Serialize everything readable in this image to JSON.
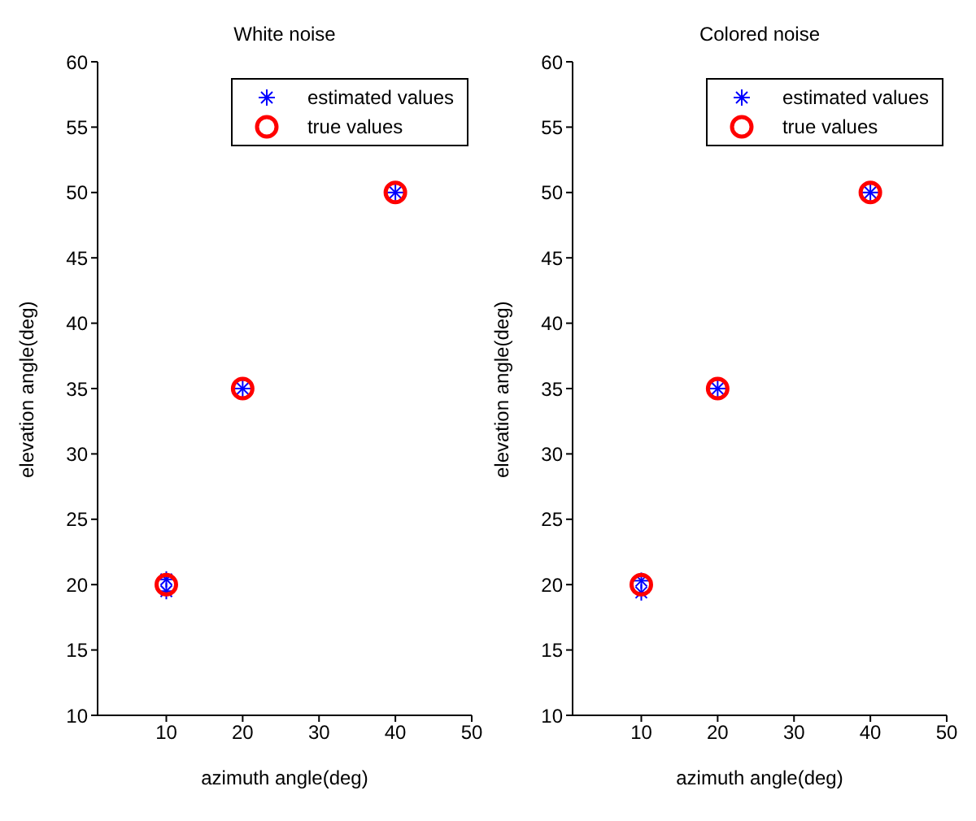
{
  "chart_data": [
    {
      "type": "scatter",
      "title": "White noise",
      "xlabel": "azimuth angle(deg)",
      "ylabel": "elevation angle(deg)",
      "xlim": [
        1,
        50
      ],
      "xticks": [
        10,
        20,
        30,
        40,
        50
      ],
      "ylim": [
        10,
        60
      ],
      "yticks": [
        10,
        15,
        20,
        25,
        30,
        35,
        40,
        45,
        50,
        55,
        60
      ],
      "grid": false,
      "legend": "top right",
      "series": [
        {
          "name": "estimated values",
          "color": "#0000ff",
          "marker": "cross",
          "x": [
            10,
            10,
            20,
            40
          ],
          "values": [
            20.4,
            19.5,
            35,
            50
          ]
        },
        {
          "name": "true values",
          "color": "#ff0000",
          "marker": "circle",
          "x": [
            10,
            20,
            40
          ],
          "values": [
            20,
            35,
            50
          ]
        }
      ]
    },
    {
      "type": "scatter",
      "title": "Colored noise",
      "xlabel": "azimuth angle(deg)",
      "ylabel": "elevation angle(deg)",
      "xlim": [
        1,
        50
      ],
      "xticks": [
        10,
        20,
        30,
        40,
        50
      ],
      "ylim": [
        10,
        60
      ],
      "yticks": [
        10,
        15,
        20,
        25,
        30,
        35,
        40,
        45,
        50,
        55,
        60
      ],
      "grid": false,
      "legend": "top right",
      "series": [
        {
          "name": "estimated values",
          "color": "#0000ff",
          "marker": "cross",
          "x": [
            10,
            10,
            20,
            40
          ],
          "values": [
            20.3,
            19.4,
            35,
            50
          ]
        },
        {
          "name": "true values",
          "color": "#ff0000",
          "marker": "circle",
          "x": [
            10,
            20,
            40
          ],
          "values": [
            20,
            35,
            50
          ]
        }
      ]
    }
  ]
}
